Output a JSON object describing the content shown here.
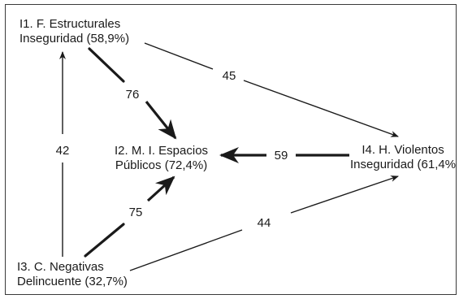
{
  "nodes": {
    "i1": {
      "line1": "I1. F. Estructurales",
      "line2": "Inseguridad (58,9%)"
    },
    "i2": {
      "line1": "I2. M. I. Espacios",
      "line2": "Públicos (72,4%)"
    },
    "i3": {
      "line1": "I3. C. Negativas",
      "line2": "Delincuente (32,7%)"
    },
    "i4": {
      "line1": "I4. H. Violentos",
      "line2": "Inseguridad (61,4%"
    }
  },
  "edges": [
    {
      "from": "I1",
      "to": "I2",
      "weight": "76"
    },
    {
      "from": "I1",
      "to": "I4",
      "weight": "45"
    },
    {
      "from": "I3",
      "to": "I1",
      "weight": "42"
    },
    {
      "from": "I4",
      "to": "I2",
      "weight": "59"
    },
    {
      "from": "I3",
      "to": "I2",
      "weight": "75"
    },
    {
      "from": "I3",
      "to": "I4",
      "weight": "44"
    }
  ],
  "colors": {
    "ink": "#1a1a1a",
    "border": "#3a3a3a",
    "background": "#ffffff"
  }
}
